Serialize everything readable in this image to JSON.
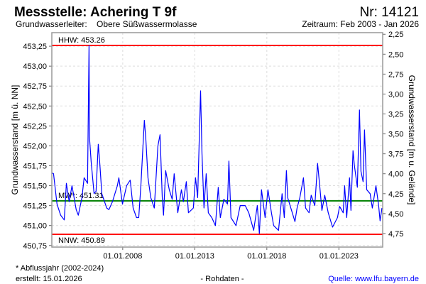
{
  "header": {
    "title": "Messstelle: Achering T 9f",
    "number": "Nr: 14121",
    "aquifer_label": "Grundwasserleiter:",
    "aquifer_value": "Obere Süßwassermolasse",
    "period": "Zeitraum: Feb 2003 - Jan 2026"
  },
  "footer": {
    "note": "* Abflussjahr (2002-2024)",
    "created": "erstellt:  15.01.2026",
    "raw": "- Rohdaten -",
    "source": "Quelle: www.lfu.bayern.de"
  },
  "colors": {
    "series": "#0000ff",
    "extreme": "#ff0000",
    "mean": "#008000",
    "source": "#0000ff"
  },
  "chart_data": {
    "type": "line",
    "ylabel": "Grundwasserstand [m ü. NN]",
    "ylabel_right": "Grundwasserstand [m u. Gelände]",
    "xlim": [
      2003.08,
      2026.04
    ],
    "ylim": [
      450.73,
      453.42
    ],
    "right_axis_offset": 455.65,
    "grid": true,
    "x_ticks": [
      {
        "value": 2008.0,
        "label": "01.01.2008"
      },
      {
        "value": 2013.0,
        "label": "01.01.2013"
      },
      {
        "value": 2018.0,
        "label": "01.01.2018"
      },
      {
        "value": 2023.0,
        "label": "01.01.2023"
      }
    ],
    "y_ticks": [
      {
        "value": 450.75,
        "label": "450,75"
      },
      {
        "value": 451.0,
        "label": "451,00"
      },
      {
        "value": 451.25,
        "label": "451,25"
      },
      {
        "value": 451.5,
        "label": "451,50"
      },
      {
        "value": 451.75,
        "label": "451,75"
      },
      {
        "value": 452.0,
        "label": "452,00"
      },
      {
        "value": 452.25,
        "label": "452,25"
      },
      {
        "value": 452.5,
        "label": "452,50"
      },
      {
        "value": 452.75,
        "label": "452,75"
      },
      {
        "value": 453.0,
        "label": "453,00"
      },
      {
        "value": 453.25,
        "label": "453,25"
      }
    ],
    "y_ticks_right": [
      {
        "value": 2.25,
        "label": "2,25"
      },
      {
        "value": 2.5,
        "label": "2,50"
      },
      {
        "value": 2.75,
        "label": "2,75"
      },
      {
        "value": 3.0,
        "label": "3,00"
      },
      {
        "value": 3.25,
        "label": "3,25"
      },
      {
        "value": 3.5,
        "label": "3,50"
      },
      {
        "value": 3.75,
        "label": "3,75"
      },
      {
        "value": 4.0,
        "label": "4,00"
      },
      {
        "value": 4.25,
        "label": "4,25"
      },
      {
        "value": 4.5,
        "label": "4,50"
      },
      {
        "value": 4.75,
        "label": "4,75"
      }
    ],
    "reference_lines": [
      {
        "name": "HHW",
        "value": 453.26,
        "label": "HHW: 453.26",
        "color": "#ff0000"
      },
      {
        "name": "MW",
        "value": 451.31,
        "label": "MW*: 451.31",
        "color": "#008000"
      },
      {
        "name": "NNW",
        "value": 450.89,
        "label": "NNW: 450.89",
        "color": "#ff0000"
      }
    ],
    "series": [
      {
        "name": "Grundwasserstand",
        "points": [
          [
            2003.1,
            451.66
          ],
          [
            2003.2,
            451.65
          ],
          [
            2003.44,
            451.27
          ],
          [
            2003.69,
            451.13
          ],
          [
            2003.94,
            451.07
          ],
          [
            2004.09,
            451.53
          ],
          [
            2004.28,
            451.3
          ],
          [
            2004.48,
            451.5
          ],
          [
            2004.77,
            451.2
          ],
          [
            2004.92,
            451.13
          ],
          [
            2005.17,
            451.35
          ],
          [
            2005.32,
            451.6
          ],
          [
            2005.56,
            451.53
          ],
          [
            2005.66,
            453.26
          ],
          [
            2005.69,
            452.11
          ],
          [
            2005.81,
            451.8
          ],
          [
            2006.01,
            451.4
          ],
          [
            2006.15,
            451.43
          ],
          [
            2006.3,
            452.02
          ],
          [
            2006.4,
            451.8
          ],
          [
            2006.55,
            451.4
          ],
          [
            2006.89,
            451.22
          ],
          [
            2007.04,
            451.2
          ],
          [
            2007.29,
            451.3
          ],
          [
            2007.63,
            451.5
          ],
          [
            2007.73,
            451.6
          ],
          [
            2007.98,
            451.27
          ],
          [
            2008.27,
            451.5
          ],
          [
            2008.52,
            451.57
          ],
          [
            2008.72,
            451.22
          ],
          [
            2008.96,
            451.1
          ],
          [
            2009.11,
            451.1
          ],
          [
            2009.26,
            451.5
          ],
          [
            2009.5,
            452.32
          ],
          [
            2009.6,
            452.1
          ],
          [
            2009.75,
            451.6
          ],
          [
            2009.95,
            451.35
          ],
          [
            2010.19,
            451.22
          ],
          [
            2010.44,
            452.0
          ],
          [
            2010.59,
            452.14
          ],
          [
            2010.74,
            451.36
          ],
          [
            2010.83,
            451.13
          ],
          [
            2010.98,
            451.69
          ],
          [
            2011.23,
            451.45
          ],
          [
            2011.43,
            451.33
          ],
          [
            2011.57,
            451.65
          ],
          [
            2011.82,
            451.16
          ],
          [
            2012.07,
            451.45
          ],
          [
            2012.21,
            451.3
          ],
          [
            2012.41,
            451.55
          ],
          [
            2012.56,
            451.16
          ],
          [
            2012.9,
            451.22
          ],
          [
            2013.05,
            451.6
          ],
          [
            2013.2,
            451.35
          ],
          [
            2013.4,
            452.69
          ],
          [
            2013.5,
            451.9
          ],
          [
            2013.64,
            451.22
          ],
          [
            2013.79,
            451.65
          ],
          [
            2013.94,
            451.16
          ],
          [
            2014.18,
            451.1
          ],
          [
            2014.43,
            451.0
          ],
          [
            2014.63,
            451.48
          ],
          [
            2014.77,
            451.1
          ],
          [
            2015.02,
            451.33
          ],
          [
            2015.27,
            451.27
          ],
          [
            2015.37,
            451.81
          ],
          [
            2015.51,
            451.1
          ],
          [
            2015.86,
            451.0
          ],
          [
            2016.15,
            451.25
          ],
          [
            2016.5,
            451.25
          ],
          [
            2016.75,
            451.16
          ],
          [
            2017.09,
            450.94
          ],
          [
            2017.34,
            451.25
          ],
          [
            2017.48,
            450.9
          ],
          [
            2017.63,
            451.45
          ],
          [
            2017.88,
            451.1
          ],
          [
            2018.08,
            451.45
          ],
          [
            2018.32,
            451.16
          ],
          [
            2018.47,
            451.0
          ],
          [
            2018.81,
            450.94
          ],
          [
            2019.06,
            451.4
          ],
          [
            2019.21,
            451.1
          ],
          [
            2019.36,
            451.69
          ],
          [
            2019.45,
            451.35
          ],
          [
            2019.7,
            451.2
          ],
          [
            2019.95,
            451.05
          ],
          [
            2020.1,
            451.22
          ],
          [
            2020.29,
            451.35
          ],
          [
            2020.54,
            451.6
          ],
          [
            2020.69,
            451.22
          ],
          [
            2020.93,
            451.16
          ],
          [
            2021.08,
            451.38
          ],
          [
            2021.33,
            451.25
          ],
          [
            2021.52,
            451.78
          ],
          [
            2021.67,
            451.5
          ],
          [
            2021.82,
            451.19
          ],
          [
            2022.02,
            451.38
          ],
          [
            2022.26,
            451.16
          ],
          [
            2022.56,
            450.98
          ],
          [
            2022.9,
            451.1
          ],
          [
            2023.05,
            451.24
          ],
          [
            2023.3,
            451.16
          ],
          [
            2023.4,
            451.5
          ],
          [
            2023.54,
            451.1
          ],
          [
            2023.74,
            451.6
          ],
          [
            2023.84,
            451.19
          ],
          [
            2023.98,
            451.94
          ],
          [
            2024.08,
            451.75
          ],
          [
            2024.28,
            451.48
          ],
          [
            2024.43,
            452.45
          ],
          [
            2024.53,
            451.68
          ],
          [
            2024.68,
            451.55
          ],
          [
            2024.78,
            452.2
          ],
          [
            2024.93,
            451.45
          ],
          [
            2025.17,
            451.4
          ],
          [
            2025.32,
            451.22
          ],
          [
            2025.57,
            451.5
          ],
          [
            2025.76,
            451.25
          ],
          [
            2025.86,
            451.06
          ],
          [
            2025.99,
            451.22
          ]
        ]
      }
    ]
  }
}
